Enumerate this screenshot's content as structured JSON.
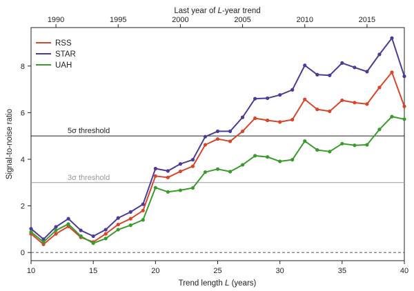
{
  "chart_data": {
    "type": "line",
    "xlabel": "Trend length L (years)",
    "ylabel": "Signal-to-noise ratio",
    "x2label": "Last year of L-year trend",
    "xlim": [
      10,
      40
    ],
    "ylim": [
      -0.35,
      9.65
    ],
    "x_ticks": [
      10,
      15,
      20,
      25,
      30,
      35,
      40
    ],
    "y_ticks": [
      0,
      2,
      4,
      6,
      8
    ],
    "x2_ticks": [
      {
        "x": 12,
        "label": "1990"
      },
      {
        "x": 17,
        "label": "1995"
      },
      {
        "x": 22,
        "label": "2000"
      },
      {
        "x": 27,
        "label": "2005"
      },
      {
        "x": 32,
        "label": "2010"
      },
      {
        "x": 37,
        "label": "2015"
      }
    ],
    "x": [
      10,
      11,
      12,
      13,
      14,
      15,
      16,
      17,
      18,
      19,
      20,
      21,
      22,
      23,
      24,
      25,
      26,
      27,
      28,
      29,
      30,
      31,
      32,
      33,
      34,
      35,
      36,
      37,
      38,
      39,
      40
    ],
    "series": [
      {
        "name": "RSS",
        "color": "#d7452b",
        "values": [
          0.8,
          0.35,
          0.8,
          1.12,
          0.65,
          0.45,
          0.8,
          1.2,
          1.45,
          1.8,
          3.28,
          3.22,
          3.48,
          3.7,
          4.62,
          4.87,
          4.77,
          5.2,
          5.76,
          5.67,
          5.6,
          5.7,
          6.57,
          6.14,
          6.06,
          6.53,
          6.43,
          6.37,
          7.08,
          7.73,
          6.27
        ]
      },
      {
        "name": "STAR",
        "color": "#4c3a98",
        "values": [
          1.02,
          0.57,
          1.1,
          1.45,
          0.95,
          0.7,
          0.98,
          1.48,
          1.74,
          2.07,
          3.6,
          3.5,
          3.8,
          3.98,
          4.97,
          5.2,
          5.2,
          5.8,
          6.6,
          6.62,
          6.76,
          6.98,
          8.03,
          7.63,
          7.6,
          8.13,
          7.94,
          7.76,
          8.5,
          9.2,
          7.56
        ]
      },
      {
        "name": "UAH",
        "color": "#3a9a2b",
        "values": [
          0.88,
          0.45,
          0.95,
          1.22,
          0.7,
          0.4,
          0.6,
          0.98,
          1.17,
          1.4,
          2.78,
          2.6,
          2.67,
          2.77,
          3.45,
          3.58,
          3.47,
          3.76,
          4.15,
          4.1,
          3.91,
          3.98,
          4.78,
          4.4,
          4.33,
          4.67,
          4.6,
          4.62,
          5.28,
          5.83,
          5.72
        ]
      }
    ],
    "thresholds": [
      {
        "label": "5σ threshold",
        "value": 5,
        "color": "#222222"
      },
      {
        "label": "3σ threshold",
        "value": 3,
        "color": "#999999"
      }
    ],
    "zero_line": {
      "value": 0,
      "color": "#666666",
      "style": "dashed"
    },
    "legend_position": "top-left",
    "grid": false
  }
}
